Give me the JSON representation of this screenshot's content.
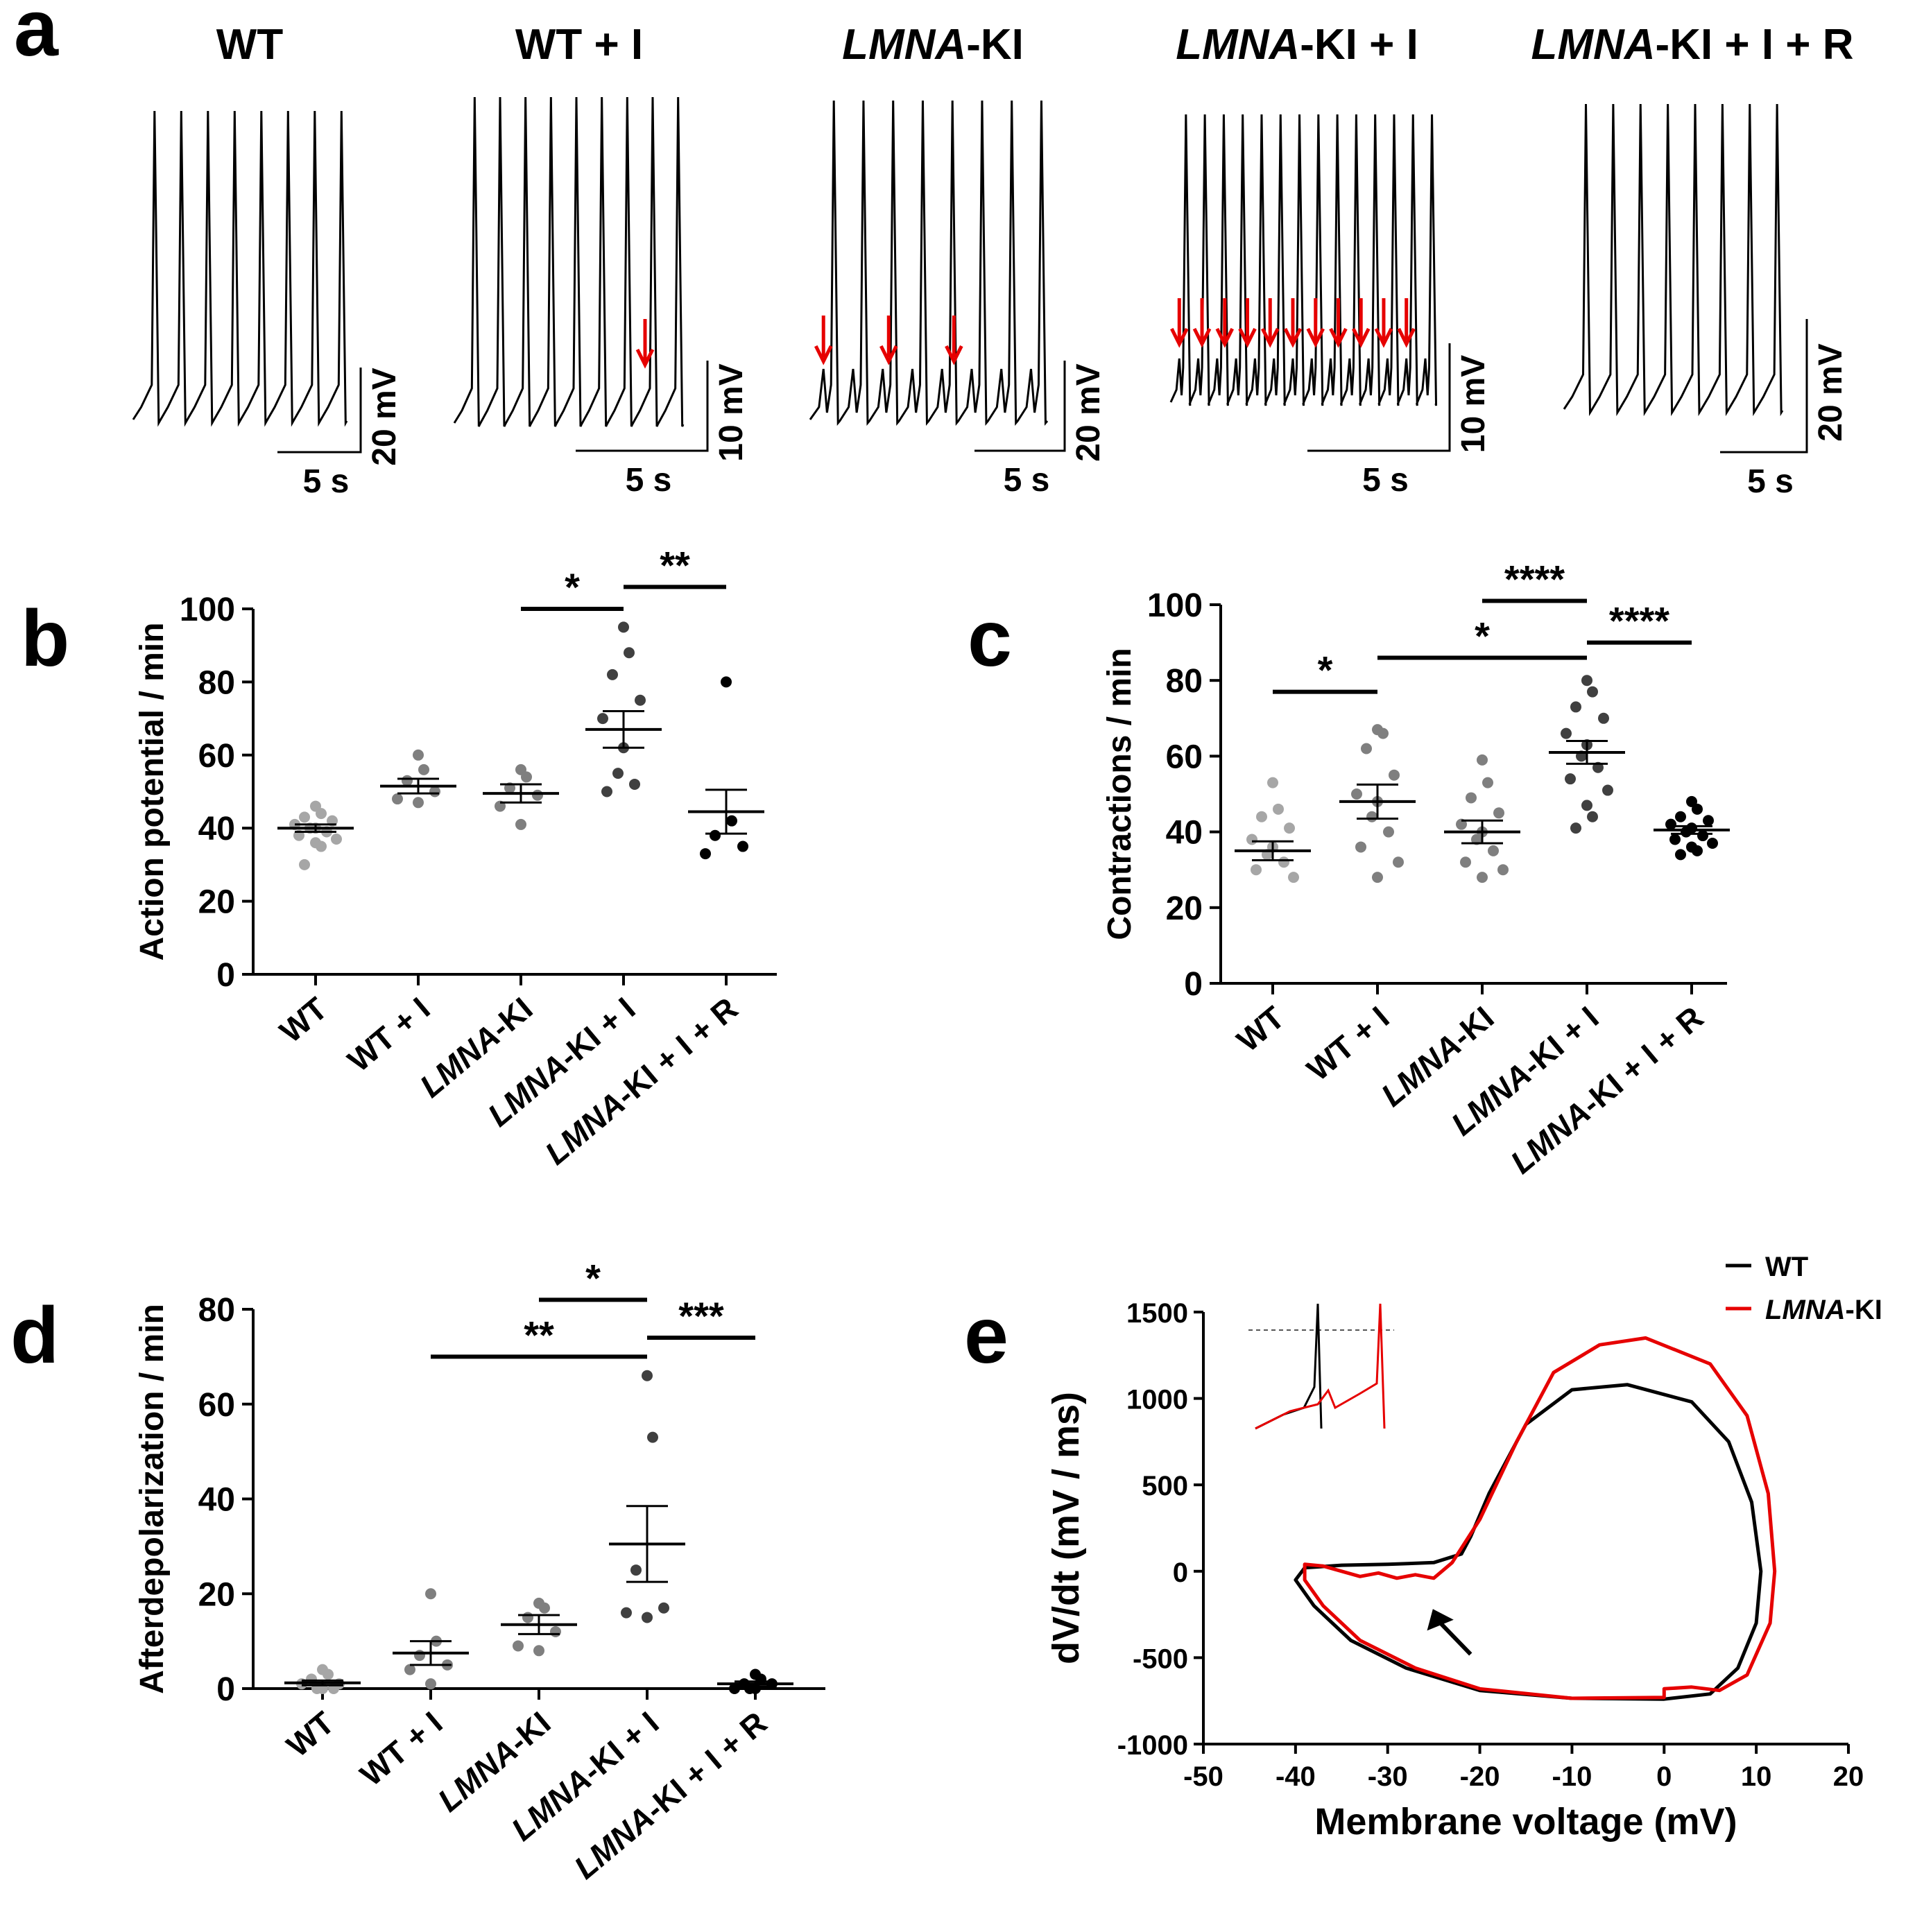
{
  "panel_letters": [
    "a",
    "b",
    "c",
    "d",
    "e"
  ],
  "colors": {
    "black": "#000000",
    "red": "#e60000",
    "light": "#a6a6a6",
    "mid": "#7f7f7f",
    "dark": "#404040"
  },
  "chart_data": [
    {
      "panel": "a",
      "type": "line",
      "description_free": true,
      "traces": [
        {
          "title": "WT",
          "title_italic": "",
          "title_rest": "WT",
          "scale_v": "20 mV",
          "scale_t": "5 s",
          "spikes": 8,
          "arrows": 0
        },
        {
          "title": "WT + I",
          "title_italic": "",
          "title_rest": "WT + I",
          "scale_v": "10 mV",
          "scale_t": "5 s",
          "spikes": 9,
          "arrows": 1
        },
        {
          "title": "LMNA-KI",
          "title_italic": "LMNA",
          "title_rest": "-KI",
          "scale_v": "20 mV",
          "scale_t": "5 s",
          "spikes": 8,
          "arrows": 3
        },
        {
          "title": "LMNA-KI + I",
          "title_italic": "LMNA",
          "title_rest": "-KI + I",
          "scale_v": "10 mV",
          "scale_t": "5 s",
          "spikes": 14,
          "arrows": 11
        },
        {
          "title": "LMNA-KI + I + R",
          "title_italic": "LMNA",
          "title_rest": "-KI + I + R",
          "scale_v": "20 mV",
          "scale_t": "5 s",
          "spikes": 8,
          "arrows": 0
        }
      ]
    },
    {
      "panel": "b",
      "type": "scatter",
      "ylabel": "Action potential / min",
      "ylim": [
        0,
        100
      ],
      "yticks": [
        0,
        20,
        40,
        60,
        80,
        100
      ],
      "categories": [
        "WT",
        "WT + I",
        "LMNA-KI",
        "LMNA-KI + I",
        "LMNA-KI + I + R"
      ],
      "mean": [
        40,
        51.5,
        49.5,
        67,
        44.5
      ],
      "sem": [
        1,
        2,
        2.5,
        5,
        6
      ],
      "points": [
        [
          46,
          44,
          43,
          42,
          41,
          40,
          40,
          39,
          38,
          37,
          36,
          35,
          30
        ],
        [
          60,
          56,
          53,
          50,
          48,
          47
        ],
        [
          56,
          54,
          51,
          49,
          46,
          41
        ],
        [
          95,
          88,
          82,
          75,
          70,
          62,
          55,
          52,
          50
        ],
        [
          80,
          42,
          38,
          35,
          33
        ]
      ],
      "significance": [
        {
          "from": 2,
          "to": 3,
          "label": "*",
          "y": 100
        },
        {
          "from": 3,
          "to": 4,
          "label": "**",
          "y": 106
        }
      ]
    },
    {
      "panel": "c",
      "type": "scatter",
      "ylabel": "Contractions / min",
      "ylim": [
        0,
        100
      ],
      "yticks": [
        0,
        20,
        40,
        60,
        80,
        100
      ],
      "categories": [
        "WT",
        "WT + I",
        "LMNA-KI",
        "LMNA-KI + I",
        "LMNA-KI + I + R"
      ],
      "mean": [
        35,
        48,
        40,
        61,
        40.5
      ],
      "sem": [
        2.5,
        4.5,
        3,
        3,
        1
      ],
      "points": [
        [
          53,
          46,
          44,
          41,
          38,
          36,
          34,
          32,
          30,
          28
        ],
        [
          67,
          66,
          62,
          55,
          50,
          48,
          44,
          40,
          36,
          32,
          28
        ],
        [
          59,
          53,
          49,
          45,
          42,
          40,
          38,
          35,
          32,
          30,
          28
        ],
        [
          80,
          77,
          73,
          70,
          66,
          63,
          60,
          57,
          54,
          51,
          47,
          44,
          41
        ],
        [
          48,
          46,
          44,
          43,
          42,
          41,
          40,
          39,
          38,
          37,
          36,
          35,
          34
        ]
      ],
      "significance": [
        {
          "from": 0,
          "to": 1,
          "label": "*",
          "y": 77
        },
        {
          "from": 1,
          "to": 3,
          "label": "*",
          "y": 86
        },
        {
          "from": 2,
          "to": 3,
          "label": "****",
          "y": 101
        },
        {
          "from": 3,
          "to": 4,
          "label": "****",
          "y": 90
        }
      ]
    },
    {
      "panel": "d",
      "type": "scatter",
      "ylabel": "Afterdepolarization / min",
      "ylim": [
        0,
        80
      ],
      "yticks": [
        0,
        20,
        40,
        60,
        80
      ],
      "categories": [
        "WT",
        "WT + I",
        "LMNA-KI",
        "LMNA-KI + I",
        "LMNA-KI + I + R"
      ],
      "mean": [
        1.2,
        7.5,
        13.5,
        30.5,
        1
      ],
      "sem": [
        0.5,
        2.5,
        2,
        8,
        0.5
      ],
      "points": [
        [
          4,
          3,
          2,
          1,
          1,
          0,
          0,
          0
        ],
        [
          20,
          10,
          7,
          5,
          4,
          1
        ],
        [
          18,
          17,
          15,
          12,
          9,
          8
        ],
        [
          66,
          53,
          25,
          17,
          16,
          15
        ],
        [
          3,
          2,
          1,
          1,
          0,
          0,
          0
        ]
      ],
      "significance": [
        {
          "from": 2,
          "to": 3,
          "label": "*",
          "y": 82
        },
        {
          "from": 1,
          "to": 3,
          "label": "**",
          "y": 70
        },
        {
          "from": 3,
          "to": 4,
          "label": "***",
          "y": 74
        }
      ]
    },
    {
      "panel": "e",
      "type": "line",
      "xlabel": "Membrane voltage (mV)",
      "ylabel": "dV/dt (mV / ms)",
      "xlim": [
        -50,
        20
      ],
      "ylim": [
        -1000,
        1500
      ],
      "xticks": [
        -50,
        -40,
        -30,
        -20,
        -10,
        0,
        10,
        20
      ],
      "yticks": [
        -1000,
        -500,
        0,
        500,
        1000,
        1500
      ],
      "series": [
        {
          "name": "WT",
          "italic": "",
          "rest": "WT",
          "color": "#000000",
          "points": [
            [
              -40,
              -50
            ],
            [
              -38,
              -200
            ],
            [
              -34,
              -400
            ],
            [
              -28,
              -560
            ],
            [
              -20,
              -690
            ],
            [
              -10,
              -735
            ],
            [
              0,
              -740
            ],
            [
              5,
              -710
            ],
            [
              8,
              -560
            ],
            [
              10,
              -300
            ],
            [
              10.5,
              0
            ],
            [
              9.5,
              400
            ],
            [
              7,
              750
            ],
            [
              3,
              980
            ],
            [
              -4,
              1080
            ],
            [
              -10,
              1050
            ],
            [
              -15,
              850
            ],
            [
              -19,
              450
            ],
            [
              -21,
              200
            ],
            [
              -22,
              100
            ],
            [
              -25,
              50
            ],
            [
              -30,
              40
            ],
            [
              -35,
              35
            ],
            [
              -39,
              20
            ],
            [
              -40,
              -50
            ]
          ]
        },
        {
          "name": "LMNA-KI",
          "italic": "LMNA",
          "rest": "-KI",
          "color": "#e60000",
          "points": [
            [
              -39,
              -50
            ],
            [
              -37,
              -200
            ],
            [
              -33,
              -400
            ],
            [
              -27,
              -560
            ],
            [
              -20,
              -680
            ],
            [
              -10,
              -735
            ],
            [
              0,
              -730
            ],
            [
              0,
              -680
            ],
            [
              3,
              -670
            ],
            [
              6,
              -690
            ],
            [
              9,
              -600
            ],
            [
              11.5,
              -300
            ],
            [
              12,
              0
            ],
            [
              11.3,
              450
            ],
            [
              9,
              900
            ],
            [
              5,
              1200
            ],
            [
              -2,
              1350
            ],
            [
              -7,
              1310
            ],
            [
              -12,
              1150
            ],
            [
              -16,
              750
            ],
            [
              -20,
              300
            ],
            [
              -23,
              50
            ],
            [
              -25,
              -40
            ],
            [
              -27,
              -20
            ],
            [
              -29,
              -40
            ],
            [
              -31,
              -10
            ],
            [
              -33,
              -30
            ],
            [
              -35,
              0
            ],
            [
              -37,
              30
            ],
            [
              -39,
              40
            ],
            [
              -39,
              -50
            ]
          ]
        }
      ],
      "inset_note": "",
      "legend_loc": "top-right"
    }
  ]
}
